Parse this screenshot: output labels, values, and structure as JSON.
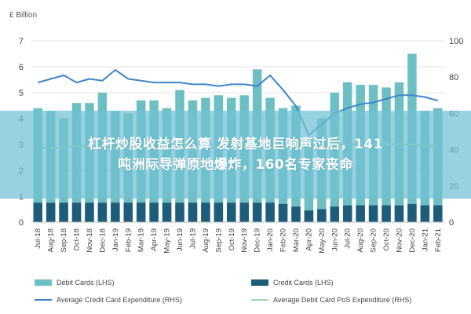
{
  "banner": {
    "line1": "杠杆炒股收益怎么算 发射基地巨响声过后，141",
    "line2": "吨洲际导弹原地爆炸，160名专家丧命"
  },
  "chart_data": {
    "type": "bar",
    "left_unit": "£ Billion",
    "ylim_left": [
      0,
      7
    ],
    "yticks_left": [
      0,
      1,
      2,
      3,
      4,
      5,
      6,
      7
    ],
    "ylim_right": [
      0,
      100
    ],
    "yticks_right": [
      0,
      20,
      40,
      60,
      80,
      100
    ],
    "grid": true,
    "legend_position": "bottom",
    "categories": [
      "Jul-18",
      "Aug-18",
      "Sep-18",
      "Oct-18",
      "Nov-18",
      "Dec-18",
      "Jan-19",
      "Feb-19",
      "Mar-19",
      "Apr-19",
      "May-19",
      "Jun-19",
      "Jul-19",
      "Aug-19",
      "Sep-19",
      "Oct-19",
      "Nov-19",
      "Dec-19",
      "Jan-20",
      "Feb-20",
      "Mar-20",
      "Apr-20",
      "May-20",
      "Jun-20",
      "Jul-20",
      "Aug-20",
      "Sep-20",
      "Oct-20",
      "Nov-20",
      "Dec-20",
      "Jan-21",
      "Feb-21"
    ],
    "series": [
      {
        "name": "Debit Cards (LHS)",
        "kind": "bar",
        "axis": "left",
        "color": "#6cc0c3",
        "values": [
          4.4,
          4.3,
          4.0,
          4.6,
          4.6,
          5.0,
          4.3,
          4.2,
          4.7,
          4.7,
          4.4,
          5.1,
          4.7,
          4.8,
          4.9,
          4.8,
          4.9,
          5.9,
          4.8,
          4.4,
          4.5,
          3.2,
          4.0,
          5.0,
          5.4,
          5.3,
          5.3,
          5.2,
          5.4,
          6.5,
          4.3,
          4.4
        ]
      },
      {
        "name": "Credit Cards (LHS)",
        "kind": "bar",
        "axis": "left",
        "color": "#1d5d79",
        "values": [
          0.75,
          0.75,
          0.75,
          0.75,
          0.75,
          0.75,
          0.75,
          0.75,
          0.75,
          0.75,
          0.75,
          0.75,
          0.75,
          0.75,
          0.75,
          0.75,
          0.75,
          0.75,
          0.75,
          0.7,
          0.6,
          0.45,
          0.5,
          0.6,
          0.65,
          0.65,
          0.65,
          0.65,
          0.65,
          0.7,
          0.65,
          0.65
        ]
      },
      {
        "name": "Average Credit Card Expenditure (RHS)",
        "kind": "line",
        "axis": "right",
        "color": "#3f86c8",
        "values": [
          77,
          79,
          81,
          77,
          79,
          78,
          84,
          79,
          78,
          77,
          77,
          77,
          76,
          76,
          75,
          76,
          76,
          75,
          81,
          73,
          64,
          48,
          54,
          60,
          63,
          65,
          66,
          68,
          70,
          70,
          69,
          67
        ]
      },
      {
        "name": "Average Debit Card PoS Expenditure (RHS)",
        "kind": "line",
        "axis": "right",
        "color": "#9fd6b4",
        "values": [
          41,
          41,
          41,
          42,
          42,
          42,
          41,
          41,
          41,
          41,
          41,
          41,
          41,
          41,
          41,
          41,
          41,
          41,
          41,
          41,
          42,
          40,
          41,
          42,
          43,
          43,
          43,
          43,
          43,
          43,
          42,
          42
        ]
      }
    ]
  }
}
